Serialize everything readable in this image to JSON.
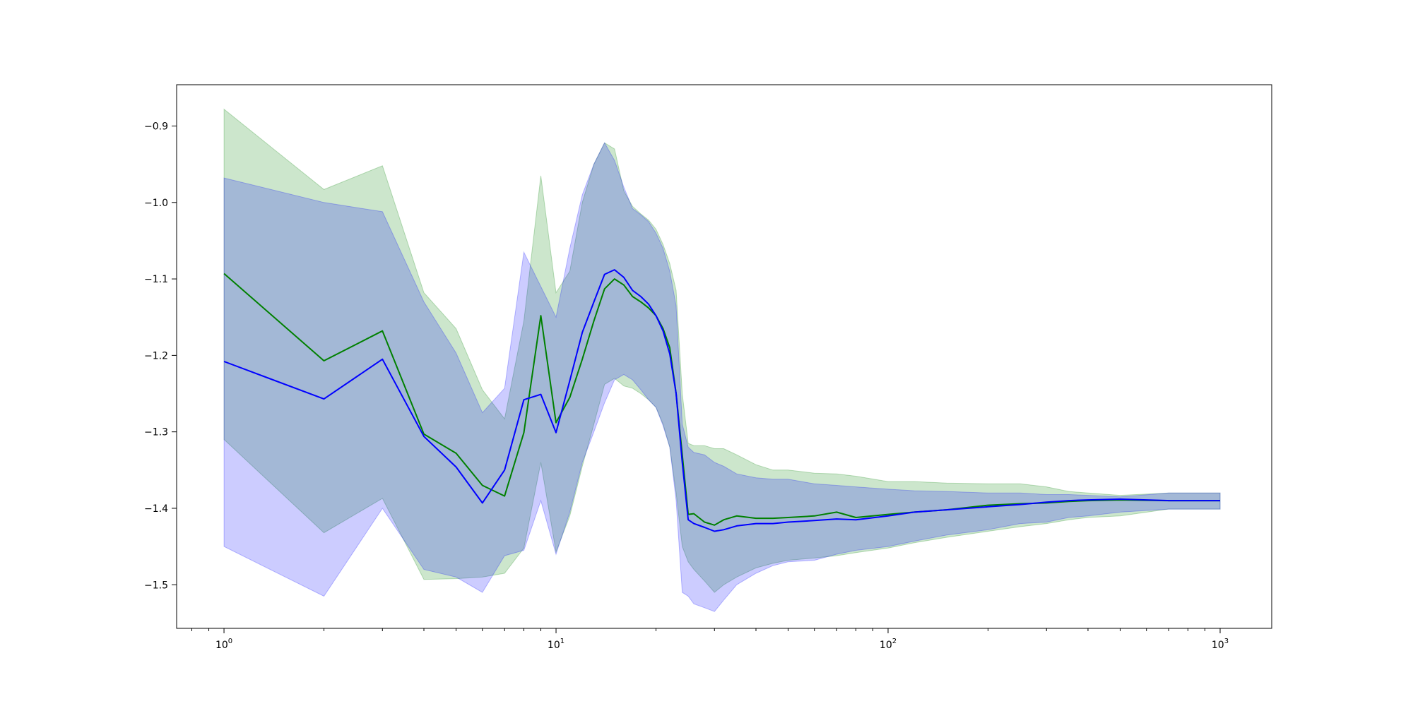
{
  "chart_data": {
    "type": "line",
    "title": "",
    "xlabel": "",
    "ylabel": "",
    "xscale": "log",
    "xlim": [
      0.72,
      1430
    ],
    "ylim": [
      -1.557,
      -0.846
    ],
    "grid": false,
    "legend": "none",
    "x_ticks": [
      {
        "value": 1,
        "base": "10",
        "exp": "0"
      },
      {
        "value": 10,
        "base": "10",
        "exp": "1"
      },
      {
        "value": 100,
        "base": "10",
        "exp": "2"
      },
      {
        "value": 1000,
        "base": "10",
        "exp": "3"
      }
    ],
    "y_ticks": [
      {
        "value": -0.9,
        "label": "−0.9"
      },
      {
        "value": -1.0,
        "label": "−1.0"
      },
      {
        "value": -1.1,
        "label": "−1.1"
      },
      {
        "value": -1.2,
        "label": "−1.2"
      },
      {
        "value": -1.3,
        "label": "−1.3"
      },
      {
        "value": -1.4,
        "label": "−1.4"
      },
      {
        "value": -1.5,
        "label": "−1.5"
      }
    ],
    "series": [
      {
        "color": "#008000",
        "band_color": "#008000",
        "band_opacity": 0.2,
        "x": [
          1,
          2,
          3,
          4,
          5,
          6,
          7,
          8,
          9,
          10,
          11,
          12,
          13,
          14,
          15,
          16,
          17,
          18,
          19,
          20,
          21,
          22,
          23,
          24,
          25,
          26,
          28,
          30,
          32,
          35,
          40,
          45,
          50,
          60,
          70,
          80,
          100,
          120,
          150,
          200,
          250,
          300,
          350,
          400,
          500,
          700,
          1000
        ],
        "y": [
          -1.093,
          -1.207,
          -1.168,
          -1.303,
          -1.328,
          -1.37,
          -1.384,
          -1.301,
          -1.148,
          -1.288,
          -1.255,
          -1.205,
          -1.155,
          -1.113,
          -1.1,
          -1.108,
          -1.123,
          -1.13,
          -1.138,
          -1.148,
          -1.165,
          -1.19,
          -1.25,
          -1.33,
          -1.408,
          -1.407,
          -1.418,
          -1.422,
          -1.415,
          -1.41,
          -1.413,
          -1.413,
          -1.412,
          -1.41,
          -1.405,
          -1.412,
          -1.408,
          -1.405,
          -1.402,
          -1.396,
          -1.394,
          -1.393,
          -1.391,
          -1.39,
          -1.389,
          -1.39,
          -1.39
        ],
        "lower": [
          -1.31,
          -1.432,
          -1.387,
          -1.493,
          -1.492,
          -1.49,
          -1.485,
          -1.452,
          -1.34,
          -1.457,
          -1.41,
          -1.345,
          -1.29,
          -1.238,
          -1.23,
          -1.24,
          -1.243,
          -1.25,
          -1.258,
          -1.268,
          -1.29,
          -1.32,
          -1.38,
          -1.45,
          -1.47,
          -1.48,
          -1.495,
          -1.51,
          -1.5,
          -1.49,
          -1.478,
          -1.472,
          -1.468,
          -1.465,
          -1.462,
          -1.458,
          -1.452,
          -1.445,
          -1.438,
          -1.43,
          -1.424,
          -1.42,
          -1.415,
          -1.412,
          -1.41,
          -1.401,
          -1.401
        ],
        "upper": [
          -0.878,
          -0.983,
          -0.952,
          -1.118,
          -1.165,
          -1.245,
          -1.283,
          -1.155,
          -0.965,
          -1.118,
          -1.09,
          -1.0,
          -0.95,
          -0.922,
          -0.93,
          -0.985,
          -1.005,
          -1.015,
          -1.023,
          -1.035,
          -1.055,
          -1.08,
          -1.115,
          -1.25,
          -1.315,
          -1.318,
          -1.318,
          -1.322,
          -1.322,
          -1.33,
          -1.343,
          -1.35,
          -1.35,
          -1.354,
          -1.355,
          -1.358,
          -1.365,
          -1.365,
          -1.367,
          -1.368,
          -1.368,
          -1.372,
          -1.378,
          -1.38,
          -1.383,
          -1.38,
          -1.38
        ]
      },
      {
        "color": "#0000ff",
        "band_color": "#0000ff",
        "band_opacity": 0.2,
        "x": [
          1,
          2,
          3,
          4,
          5,
          6,
          7,
          8,
          9,
          10,
          11,
          12,
          13,
          14,
          15,
          16,
          17,
          18,
          19,
          20,
          21,
          22,
          23,
          24,
          25,
          26,
          28,
          30,
          32,
          35,
          40,
          45,
          50,
          60,
          70,
          80,
          100,
          120,
          150,
          200,
          250,
          300,
          350,
          400,
          500,
          700,
          1000
        ],
        "y": [
          -1.208,
          -1.257,
          -1.205,
          -1.306,
          -1.346,
          -1.393,
          -1.35,
          -1.258,
          -1.251,
          -1.301,
          -1.233,
          -1.17,
          -1.13,
          -1.094,
          -1.088,
          -1.098,
          -1.115,
          -1.123,
          -1.133,
          -1.148,
          -1.168,
          -1.198,
          -1.25,
          -1.34,
          -1.415,
          -1.42,
          -1.425,
          -1.43,
          -1.428,
          -1.423,
          -1.42,
          -1.42,
          -1.418,
          -1.416,
          -1.414,
          -1.415,
          -1.41,
          -1.405,
          -1.402,
          -1.398,
          -1.395,
          -1.392,
          -1.39,
          -1.389,
          -1.388,
          -1.39,
          -1.39
        ],
        "lower": [
          -1.45,
          -1.515,
          -1.4,
          -1.48,
          -1.49,
          -1.51,
          -1.462,
          -1.455,
          -1.39,
          -1.46,
          -1.405,
          -1.34,
          -1.3,
          -1.262,
          -1.232,
          -1.225,
          -1.232,
          -1.245,
          -1.258,
          -1.268,
          -1.292,
          -1.32,
          -1.39,
          -1.51,
          -1.515,
          -1.525,
          -1.53,
          -1.535,
          -1.52,
          -1.5,
          -1.485,
          -1.475,
          -1.47,
          -1.468,
          -1.46,
          -1.455,
          -1.45,
          -1.443,
          -1.435,
          -1.428,
          -1.42,
          -1.418,
          -1.412,
          -1.41,
          -1.405,
          -1.401,
          -1.401
        ],
        "upper": [
          -0.968,
          -1.0,
          -1.012,
          -1.13,
          -1.197,
          -1.275,
          -1.243,
          -1.065,
          -1.11,
          -1.15,
          -1.06,
          -0.99,
          -0.95,
          -0.922,
          -0.945,
          -0.98,
          -1.008,
          -1.016,
          -1.025,
          -1.04,
          -1.06,
          -1.09,
          -1.135,
          -1.29,
          -1.32,
          -1.327,
          -1.33,
          -1.34,
          -1.345,
          -1.355,
          -1.36,
          -1.362,
          -1.362,
          -1.368,
          -1.37,
          -1.372,
          -1.375,
          -1.377,
          -1.378,
          -1.38,
          -1.38,
          -1.382,
          -1.382,
          -1.383,
          -1.385,
          -1.38,
          -1.38
        ]
      }
    ]
  }
}
